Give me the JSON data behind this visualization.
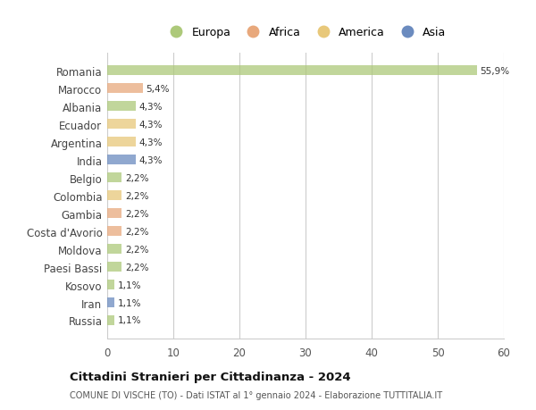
{
  "countries": [
    "Romania",
    "Marocco",
    "Albania",
    "Ecuador",
    "Argentina",
    "India",
    "Belgio",
    "Colombia",
    "Gambia",
    "Costa d'Avorio",
    "Moldova",
    "Paesi Bassi",
    "Kosovo",
    "Iran",
    "Russia"
  ],
  "values": [
    55.9,
    5.4,
    4.3,
    4.3,
    4.3,
    4.3,
    2.2,
    2.2,
    2.2,
    2.2,
    2.2,
    2.2,
    1.1,
    1.1,
    1.1
  ],
  "labels": [
    "55,9%",
    "5,4%",
    "4,3%",
    "4,3%",
    "4,3%",
    "4,3%",
    "2,2%",
    "2,2%",
    "2,2%",
    "2,2%",
    "2,2%",
    "2,2%",
    "1,1%",
    "1,1%",
    "1,1%"
  ],
  "colors": [
    "#adc97a",
    "#e8a87c",
    "#adc97a",
    "#e8c87a",
    "#e8c87a",
    "#6b8bbf",
    "#adc97a",
    "#e8c87a",
    "#e8a87c",
    "#e8a87c",
    "#adc97a",
    "#adc97a",
    "#adc97a",
    "#6b8bbf",
    "#adc97a"
  ],
  "legend_labels": [
    "Europa",
    "Africa",
    "America",
    "Asia"
  ],
  "legend_colors": [
    "#adc97a",
    "#e8a87c",
    "#e8c87a",
    "#6b8bbf"
  ],
  "title": "Cittadini Stranieri per Cittadinanza - 2024",
  "subtitle": "COMUNE DI VISCHE (TO) - Dati ISTAT al 1° gennaio 2024 - Elaborazione TUTTITALIA.IT",
  "xlim": [
    0,
    60
  ],
  "xticks": [
    0,
    10,
    20,
    30,
    40,
    50,
    60
  ],
  "bg_color": "#ffffff",
  "grid_color": "#cccccc",
  "bar_height": 0.55
}
